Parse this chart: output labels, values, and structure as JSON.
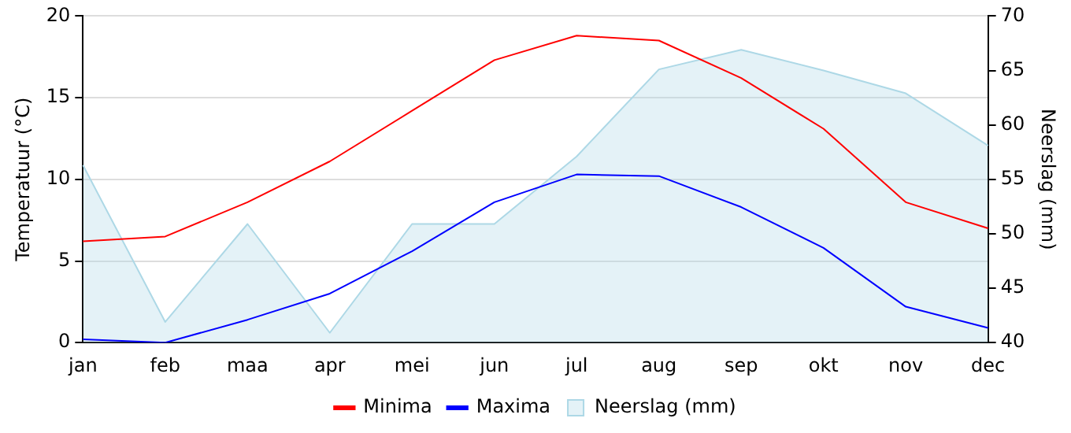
{
  "chart_data": {
    "type": "line",
    "xlabel": null,
    "ylabel": "Temperatuur (°C)",
    "y2label": "Neerslag (mm)",
    "categories": [
      "jan",
      "feb",
      "maa",
      "apr",
      "mei",
      "jun",
      "jul",
      "aug",
      "sep",
      "okt",
      "nov",
      "dec"
    ],
    "series": [
      {
        "name": "Minima",
        "color": "#ff0000",
        "values": [
          6.2,
          6.5,
          8.6,
          11.1,
          14.2,
          17.3,
          18.8,
          18.5,
          16.2,
          13.1,
          8.6,
          7.0
        ]
      },
      {
        "name": "Maxima",
        "color": "#0000ff",
        "values": [
          0.2,
          0.0,
          1.4,
          3.0,
          5.6,
          8.6,
          10.3,
          10.2,
          8.3,
          5.8,
          2.2,
          0.9
        ]
      },
      {
        "name": "Neerslag (mm)",
        "type": "area",
        "axis": "y2",
        "color": "#add8e6",
        "values": [
          56.3,
          41.9,
          50.9,
          40.9,
          50.9,
          50.9,
          57.1,
          65.1,
          66.9,
          65.0,
          62.9,
          58.1
        ]
      }
    ],
    "ylim": [
      0,
      20
    ],
    "yticks": [
      0,
      5,
      10,
      15,
      20
    ],
    "y2lim": [
      40,
      70
    ],
    "y2ticks": [
      40,
      45,
      50,
      55,
      60,
      65,
      70
    ],
    "grid": "y",
    "legend": "bottom",
    "marker": "none",
    "line_style": "solid"
  }
}
